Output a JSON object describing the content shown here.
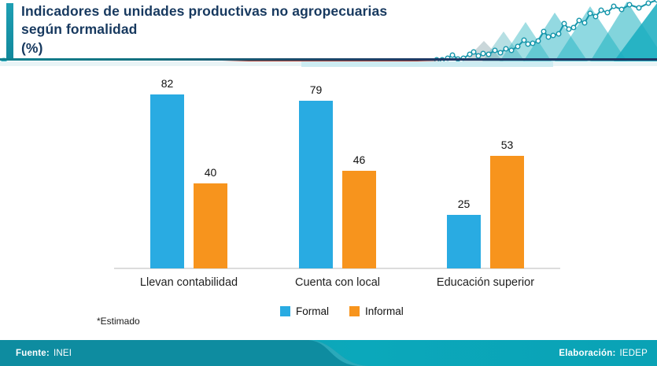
{
  "header": {
    "title": "Indicadores de unidades productivas no agropecuarias\nsegún formalidad\n(%)",
    "title_color": "#17395f",
    "accent_color": "#1796ab"
  },
  "chart_data": {
    "type": "bar",
    "title": "Indicadores de unidades productivas no agropecuarias según formalidad (%)",
    "categories": [
      "Llevan contabilidad",
      "Cuenta con local",
      "Educación superior"
    ],
    "series": [
      {
        "name": "Formal",
        "color": "#29abe2",
        "values": [
          82,
          79,
          25
        ]
      },
      {
        "name": "Informal",
        "color": "#f7941d",
        "values": [
          40,
          46,
          53
        ]
      }
    ],
    "unit": "%",
    "value_labels_shown": true,
    "legend_position": "bottom",
    "ylim": [
      0,
      90
    ],
    "gridlines": false
  },
  "footnote": "*Estimado",
  "footer": {
    "source_label": "Fuente:",
    "source_value": "INEI",
    "elaboration_label": "Elaboración:",
    "elaboration_value": "IEDEP",
    "background_left": "#0e8ca0",
    "background_right": "#0ba6b9",
    "text_color": "#ffffff"
  }
}
